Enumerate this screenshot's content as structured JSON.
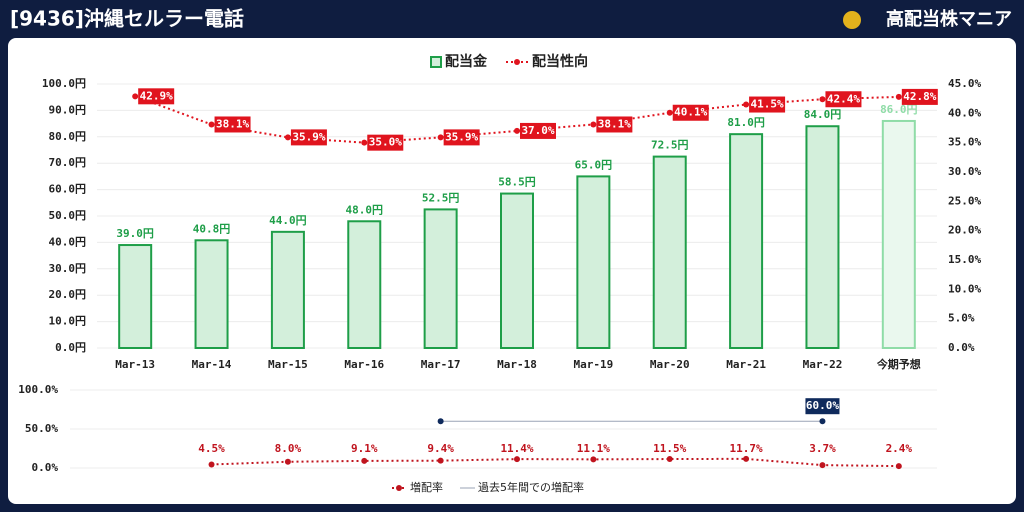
{
  "header": {
    "title": "[9436]沖縄セルラー電話",
    "brand": "高配当株マニア"
  },
  "chart_data": [
    {
      "type": "bar",
      "categories": [
        "Mar-13",
        "Mar-14",
        "Mar-15",
        "Mar-16",
        "Mar-17",
        "Mar-18",
        "Mar-19",
        "Mar-20",
        "Mar-21",
        "Mar-22",
        "今期予想"
      ],
      "series": [
        {
          "name": "配当金",
          "colors": [
            "#1e9e48",
            "#1e9e48",
            "#1e9e48",
            "#1e9e48",
            "#1e9e48",
            "#1e9e48",
            "#1e9e48",
            "#1e9e48",
            "#1e9e48",
            "#1e9e48",
            "#8fdca7"
          ],
          "fills": [
            "#d3efdb",
            "#d3efdb",
            "#d3efdb",
            "#d3efdb",
            "#d3efdb",
            "#d3efdb",
            "#d3efdb",
            "#d3efdb",
            "#d3efdb",
            "#d3efdb",
            "#eaf8ee"
          ],
          "values": [
            39.0,
            40.8,
            44.0,
            48.0,
            52.5,
            58.5,
            65.0,
            72.5,
            81.0,
            84.0,
            86.0
          ],
          "value_labels": [
            "39.0円",
            "40.8円",
            "44.0円",
            "48.0円",
            "52.5円",
            "58.5円",
            "65.0円",
            "72.5円",
            "81.0円",
            "84.0円",
            "86.0円"
          ]
        },
        {
          "name": "配当性向",
          "type": "line",
          "axis": "y2",
          "color": "#e0141e",
          "values": [
            42.9,
            38.1,
            35.9,
            35.0,
            35.9,
            37.0,
            38.1,
            40.1,
            41.5,
            42.4,
            42.8
          ],
          "value_labels": [
            "42.9%",
            "38.1%",
            "35.9%",
            "35.0%",
            "35.9%",
            "37.0%",
            "38.1%",
            "40.1%",
            "41.5%",
            "42.4%",
            "42.8%"
          ]
        }
      ],
      "ylim": [
        0,
        100
      ],
      "yticks": [
        {
          "value": 0,
          "label": "0.0円"
        },
        {
          "value": 10,
          "label": "10.0円"
        },
        {
          "value": 20,
          "label": "20.0円"
        },
        {
          "value": 30,
          "label": "30.0円"
        },
        {
          "value": 40,
          "label": "40.0円"
        },
        {
          "value": 50,
          "label": "50.0円"
        },
        {
          "value": 60,
          "label": "60.0円"
        },
        {
          "value": 70,
          "label": "70.0円"
        },
        {
          "value": 80,
          "label": "80.0円"
        },
        {
          "value": 90,
          "label": "90.0円"
        },
        {
          "value": 100,
          "label": "100.0円"
        }
      ],
      "y2lim": [
        0,
        45
      ],
      "y2ticks": [
        {
          "value": 0,
          "label": "0.0%"
        },
        {
          "value": 5,
          "label": "5.0%"
        },
        {
          "value": 10,
          "label": "10.0%"
        },
        {
          "value": 15,
          "label": "15.0%"
        },
        {
          "value": 20,
          "label": "20.0%"
        },
        {
          "value": 25,
          "label": "25.0%"
        },
        {
          "value": 30,
          "label": "30.0%"
        },
        {
          "value": 35,
          "label": "35.0%"
        },
        {
          "value": 40,
          "label": "40.0%"
        },
        {
          "value": 45,
          "label": "45.0%"
        }
      ],
      "grid": true,
      "legend": "top"
    },
    {
      "type": "line",
      "series": [
        {
          "name": "増配率",
          "color": "#c0141e",
          "values": [
            null,
            4.5,
            8.0,
            9.1,
            9.4,
            11.4,
            11.1,
            11.5,
            11.7,
            3.7,
            2.4
          ],
          "value_labels": [
            null,
            "4.5%",
            "8.0%",
            "9.1%",
            "9.4%",
            "11.4%",
            "11.1%",
            "11.5%",
            "11.7%",
            "3.7%",
            "2.4%"
          ]
        },
        {
          "name": "過去5年間での増配率",
          "color": "#0f2a5c",
          "values": [
            null,
            null,
            null,
            null,
            60.0,
            60.0,
            60.0,
            60.0,
            60.0,
            60.0,
            null
          ],
          "value_labels": [
            null,
            null,
            null,
            null,
            null,
            null,
            null,
            null,
            null,
            "60.0%",
            null
          ]
        }
      ],
      "ylim": [
        0,
        100
      ],
      "yticks": [
        {
          "value": 0,
          "label": "0.0%"
        },
        {
          "value": 50,
          "label": "50.0%"
        },
        {
          "value": 100,
          "label": "100.0%"
        }
      ],
      "grid": true,
      "legend": "bottom"
    }
  ]
}
